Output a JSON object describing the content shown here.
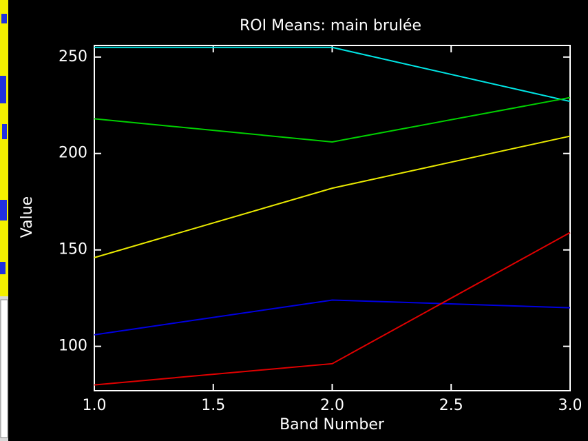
{
  "chart_data": {
    "type": "line",
    "title": "ROI Means: main brulée",
    "xlabel": "Band Number",
    "ylabel": "Value",
    "x": [
      1,
      2,
      3
    ],
    "series": [
      {
        "color": "#00e5e5",
        "values": [
          255,
          255,
          227
        ]
      },
      {
        "color": "#00d000",
        "values": [
          218,
          206,
          229
        ]
      },
      {
        "color": "#e8e800",
        "values": [
          146,
          182,
          209
        ]
      },
      {
        "color": "#0000e0",
        "values": [
          106,
          124,
          120
        ]
      },
      {
        "color": "#e00000",
        "values": [
          80,
          91,
          159
        ]
      }
    ],
    "xlim": [
      1,
      3
    ],
    "xticks": [
      {
        "value": 1,
        "label": "1.0"
      },
      {
        "value": 1.5,
        "label": "1.5"
      },
      {
        "value": 2,
        "label": "2.0"
      },
      {
        "value": 2.5,
        "label": "2.5"
      },
      {
        "value": 3,
        "label": "3.0"
      }
    ],
    "ylim": [
      77,
      256
    ],
    "yticks": [
      100,
      150,
      200,
      250
    ],
    "grid": false
  }
}
